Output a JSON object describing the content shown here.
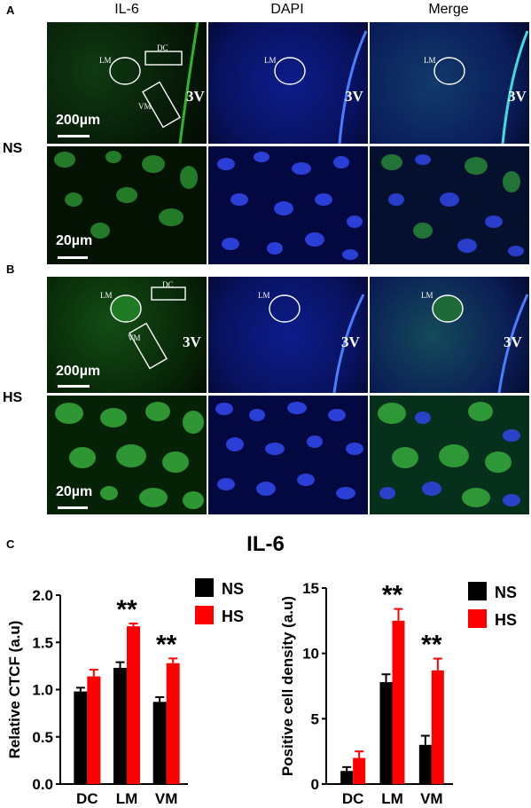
{
  "panels": {
    "a": "A",
    "b": "B",
    "c": "C"
  },
  "columns": [
    "IL-6",
    "DAPI",
    "Merge"
  ],
  "rows": {
    "ns": "NS",
    "hs": "HS"
  },
  "scale": {
    "large": "200µm",
    "small": "20µm"
  },
  "landmark": "3V",
  "regions": {
    "lm": "LM",
    "dc": "DC",
    "vm": "VM"
  },
  "colors": {
    "ns": "#000000",
    "hs": "#ff0000",
    "il6": "#22c02a",
    "dapi": "#1d2be0"
  },
  "chart_title": "IL-6",
  "chart_data": [
    {
      "type": "bar",
      "categories": [
        "DC",
        "LM",
        "VM"
      ],
      "series": [
        {
          "name": "NS",
          "values": [
            0.98,
            1.23,
            0.87
          ],
          "errors": [
            0.04,
            0.06,
            0.05
          ]
        },
        {
          "name": "HS",
          "values": [
            1.14,
            1.67,
            1.28
          ],
          "errors": [
            0.07,
            0.03,
            0.05
          ]
        }
      ],
      "significance": [
        "",
        "**",
        "**"
      ],
      "ylabel": "Relative CTCF (a.u)",
      "ylim": [
        0,
        2.0
      ],
      "yticks": [
        "0.0",
        "0.5",
        "1.0",
        "1.5",
        "2.0"
      ],
      "legend": "top-right"
    },
    {
      "type": "bar",
      "categories": [
        "DC",
        "LM",
        "VM"
      ],
      "series": [
        {
          "name": "NS",
          "values": [
            1.0,
            7.8,
            3.0
          ],
          "errors": [
            0.3,
            0.6,
            0.7
          ]
        },
        {
          "name": "HS",
          "values": [
            2.0,
            12.5,
            8.7
          ],
          "errors": [
            0.5,
            0.9,
            0.9
          ]
        }
      ],
      "significance": [
        "",
        "**",
        "**"
      ],
      "ylabel": "Positive cell density (a.u)",
      "ylim": [
        0,
        15
      ],
      "yticks": [
        "0",
        "5",
        "10",
        "15"
      ],
      "legend": "top-right"
    }
  ]
}
